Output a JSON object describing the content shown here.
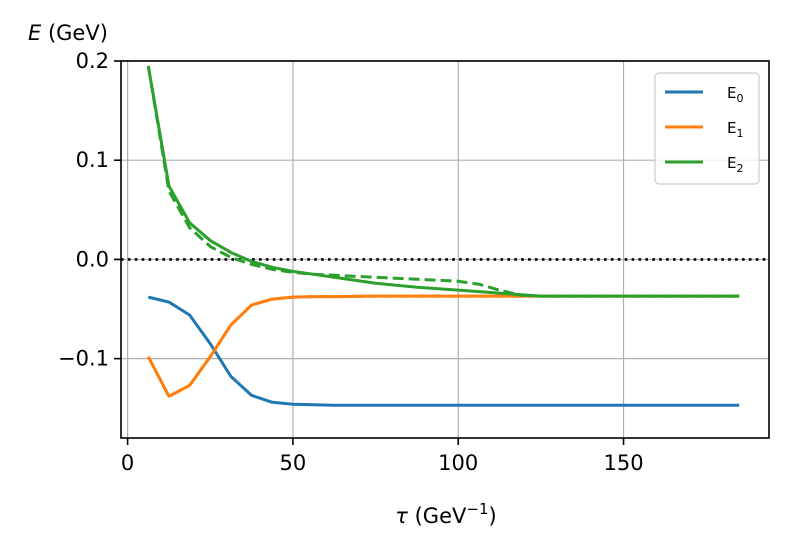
{
  "chart_data": {
    "type": "line",
    "title": "",
    "xlabel": "τ (GeV⁻¹)",
    "ylabel": "E (GeV)",
    "xlim": [
      -2,
      194
    ],
    "ylim": [
      -0.18,
      0.2
    ],
    "xticks": [
      0,
      50,
      100,
      150
    ],
    "xtick_labels": [
      "0",
      "50",
      "100",
      "150"
    ],
    "yticks": [
      0.2,
      0.1,
      0.0,
      -0.1
    ],
    "ytick_labels": [
      "0.2",
      "0.1",
      "0.0",
      "−0.1"
    ],
    "grid": true,
    "legend_position": "top-right",
    "reference_line": {
      "y": 0.0,
      "style": "dotted",
      "color": "#000000"
    },
    "series": [
      {
        "name": "E₀",
        "legend_main": "E",
        "legend_sub": "0",
        "color": "#1f77b4",
        "style": "solid",
        "x": [
          6.25,
          12.5,
          18.75,
          25,
          31.25,
          37.5,
          43.75,
          50,
          56.25,
          62.5,
          75,
          100,
          125,
          150,
          175,
          185
        ],
        "y": [
          -0.038,
          -0.043,
          -0.056,
          -0.085,
          -0.118,
          -0.137,
          -0.144,
          -0.146,
          -0.1465,
          -0.147,
          -0.147,
          -0.147,
          -0.147,
          -0.147,
          -0.147,
          -0.147
        ]
      },
      {
        "name": "E₁",
        "legend_main": "E",
        "legend_sub": "1",
        "color": "#ff7f0e",
        "style": "solid",
        "x": [
          6.25,
          12.5,
          18.75,
          25,
          31.25,
          37.5,
          43.75,
          50,
          56.25,
          62.5,
          75,
          100,
          125,
          150,
          175,
          185
        ],
        "y": [
          -0.098,
          -0.138,
          -0.127,
          -0.098,
          -0.066,
          -0.046,
          -0.04,
          -0.038,
          -0.0375,
          -0.0375,
          -0.037,
          -0.037,
          -0.037,
          -0.037,
          -0.037,
          -0.037
        ]
      },
      {
        "name": "E₁ (dashed)",
        "color": "#ff7f0e",
        "style": "dashed",
        "x": [
          6.25,
          12.5,
          18.75,
          25,
          31.25,
          37.5,
          43.75,
          50,
          56.25,
          62.5,
          75,
          100,
          125,
          150,
          175,
          185
        ],
        "y": [
          -0.098,
          -0.138,
          -0.127,
          -0.098,
          -0.066,
          -0.046,
          -0.04,
          -0.038,
          -0.0375,
          -0.0375,
          -0.037,
          -0.037,
          -0.037,
          -0.037,
          -0.037,
          -0.037
        ]
      },
      {
        "name": "E₂",
        "legend_main": "E",
        "legend_sub": "2",
        "color": "#2ca02c",
        "style": "solid",
        "x": [
          6.25,
          12.5,
          18.75,
          25,
          31.25,
          37.5,
          43.75,
          50,
          56.25,
          62.5,
          75,
          87.5,
          100,
          112.5,
          125,
          150,
          175,
          185
        ],
        "y": [
          0.195,
          0.074,
          0.037,
          0.019,
          0.007,
          -0.002,
          -0.008,
          -0.012,
          -0.015,
          -0.018,
          -0.024,
          -0.028,
          -0.031,
          -0.034,
          -0.037,
          -0.037,
          -0.037,
          -0.037
        ]
      },
      {
        "name": "E₂ (dashed)",
        "color": "#2ca02c",
        "style": "dashed",
        "x": [
          6.25,
          12.5,
          18.75,
          25,
          31.25,
          37.5,
          43.75,
          50,
          56.25,
          62.5,
          75,
          87.5,
          100,
          106.25,
          112.5,
          118.75,
          125,
          150,
          175,
          185
        ],
        "y": [
          0.195,
          0.069,
          0.032,
          0.013,
          0.002,
          -0.005,
          -0.01,
          -0.013,
          -0.015,
          -0.016,
          -0.018,
          -0.02,
          -0.022,
          -0.025,
          -0.031,
          -0.036,
          -0.037,
          -0.037,
          -0.037,
          -0.037
        ]
      }
    ]
  }
}
